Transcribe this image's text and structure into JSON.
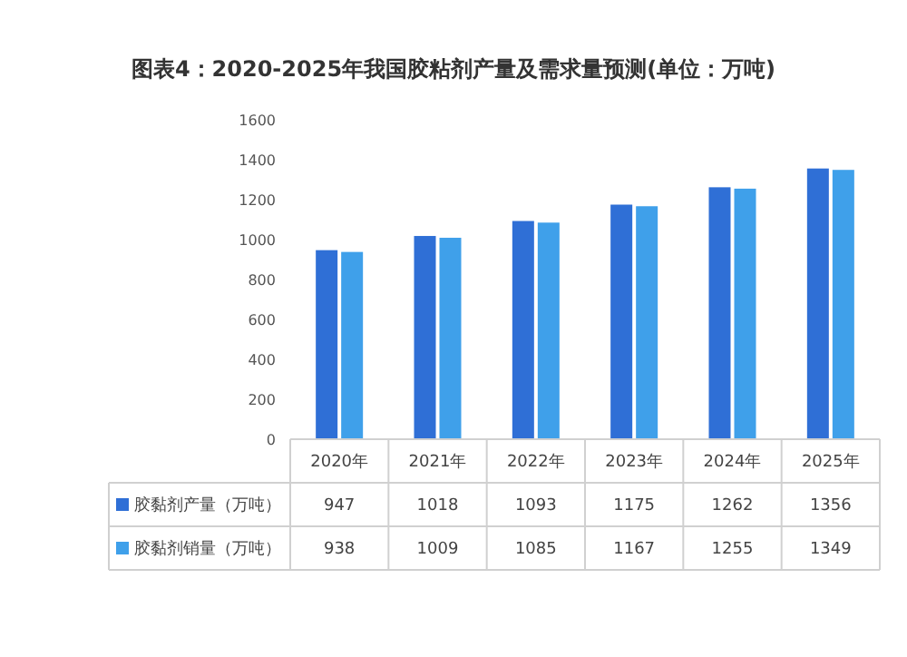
{
  "chart_data": {
    "type": "bar",
    "title": "图表4：2020-2025年我国胶粘剂产量及需求量预测(单位：万吨)",
    "categories": [
      "2020年",
      "2021年",
      "2022年",
      "2023年",
      "2024年",
      "2025年"
    ],
    "series": [
      {
        "name": "胶黏剂产量（万吨）",
        "color": "#2f6fd6",
        "values": [
          947,
          1018,
          1093,
          1175,
          1262,
          1356
        ]
      },
      {
        "name": "胶黏剂销量（万吨）",
        "color": "#3fa0ea",
        "values": [
          938,
          1009,
          1085,
          1167,
          1255,
          1349
        ]
      }
    ],
    "ylim": [
      0,
      1600
    ],
    "yticks": [
      0,
      200,
      400,
      600,
      800,
      1000,
      1200,
      1400,
      1600
    ],
    "data_labels": true,
    "legend": "bottom left"
  }
}
